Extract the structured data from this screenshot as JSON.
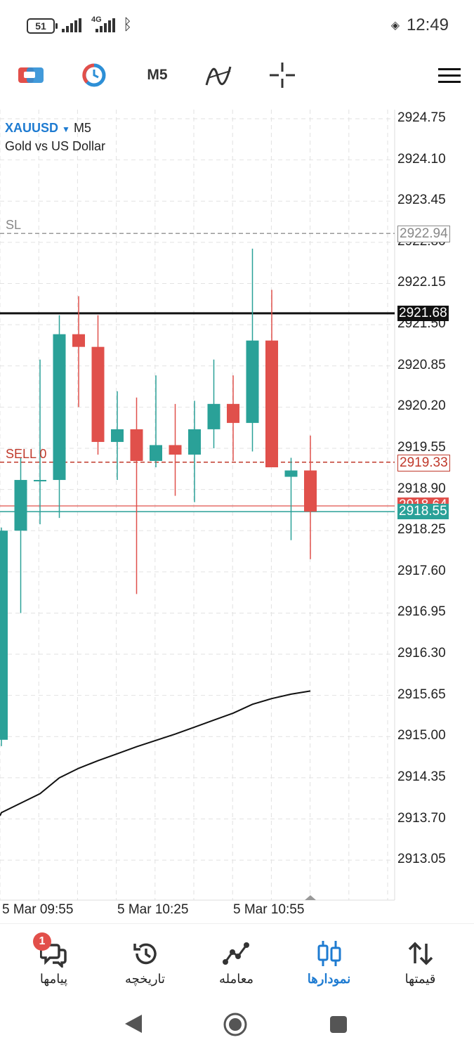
{
  "status_bar": {
    "battery": "51",
    "network": "4G",
    "time": "12:49"
  },
  "toolbar": {
    "timeframe": "M5"
  },
  "chart": {
    "symbol": "XAUUSD",
    "symbol_timeframe": "M5",
    "description": "Gold vs US Dollar",
    "lines": {
      "sl_label": "SL",
      "sl_price": "2922.94",
      "current_price": "2921.68",
      "sell_label": "SELL 0",
      "sell_price": "2919.33",
      "ask_price": "2918.64",
      "bid_price": "2918.55"
    }
  },
  "chart_data": {
    "type": "candlestick",
    "y_ticks": [
      "2924.75",
      "2924.10",
      "2923.45",
      "2922.80",
      "2922.15",
      "2921.50",
      "2920.85",
      "2920.20",
      "2919.55",
      "2918.90",
      "2918.25",
      "2917.60",
      "2916.95",
      "2916.30",
      "2915.65",
      "2915.00",
      "2914.35",
      "2913.70",
      "2913.05"
    ],
    "x_ticks": [
      "5 Mar 09:55",
      "5 Mar 10:25",
      "5 Mar 10:55"
    ],
    "ylim": [
      2912.45,
      2925.0
    ],
    "candles": [
      {
        "o": 2914.95,
        "h": 2918.3,
        "l": 2914.85,
        "c": 2918.25
      },
      {
        "o": 2918.25,
        "h": 2919.4,
        "l": 2916.95,
        "c": 2919.05
      },
      {
        "o": 2919.05,
        "h": 2920.95,
        "l": 2918.35,
        "c": 2919.05
      },
      {
        "o": 2919.05,
        "h": 2921.65,
        "l": 2918.45,
        "c": 2921.35
      },
      {
        "o": 2921.35,
        "h": 2921.95,
        "l": 2920.2,
        "c": 2921.15
      },
      {
        "o": 2921.15,
        "h": 2921.65,
        "l": 2919.45,
        "c": 2919.65
      },
      {
        "o": 2919.65,
        "h": 2920.45,
        "l": 2919.05,
        "c": 2919.85
      },
      {
        "o": 2919.85,
        "h": 2920.35,
        "l": 2917.25,
        "c": 2919.35
      },
      {
        "o": 2919.35,
        "h": 2920.7,
        "l": 2919.25,
        "c": 2919.6
      },
      {
        "o": 2919.6,
        "h": 2920.25,
        "l": 2918.8,
        "c": 2919.45
      },
      {
        "o": 2919.45,
        "h": 2920.3,
        "l": 2918.7,
        "c": 2919.85
      },
      {
        "o": 2919.85,
        "h": 2920.95,
        "l": 2919.55,
        "c": 2920.25
      },
      {
        "o": 2920.25,
        "h": 2920.7,
        "l": 2919.35,
        "c": 2919.95
      },
      {
        "o": 2919.95,
        "h": 2922.7,
        "l": 2919.5,
        "c": 2921.25
      },
      {
        "o": 2921.25,
        "h": 2922.05,
        "l": 2919.3,
        "c": 2919.25
      },
      {
        "o": 2919.1,
        "h": 2919.4,
        "l": 2918.1,
        "c": 2919.2
      },
      {
        "o": 2919.2,
        "h": 2919.75,
        "l": 2917.8,
        "c": 2918.55
      }
    ],
    "moving_average": [
      2913.8,
      2913.95,
      2914.1,
      2914.35,
      2914.5,
      2914.62,
      2914.73,
      2914.84,
      2914.94,
      2915.04,
      2915.15,
      2915.26,
      2915.37,
      2915.51,
      2915.6,
      2915.67,
      2915.72
    ]
  },
  "colors": {
    "bull": "#2aa198",
    "bear": "#e0504b",
    "accent": "#1e7bd1"
  },
  "nav": {
    "items": [
      {
        "label": "پیامها",
        "icon": "chat-icon",
        "badge": "1"
      },
      {
        "label": "تاریخچه",
        "icon": "history-icon"
      },
      {
        "label": "معامله",
        "icon": "trade-icon"
      },
      {
        "label": "نمودارها",
        "icon": "charts-icon"
      },
      {
        "label": "قیمتها",
        "icon": "quotes-icon"
      }
    ]
  }
}
